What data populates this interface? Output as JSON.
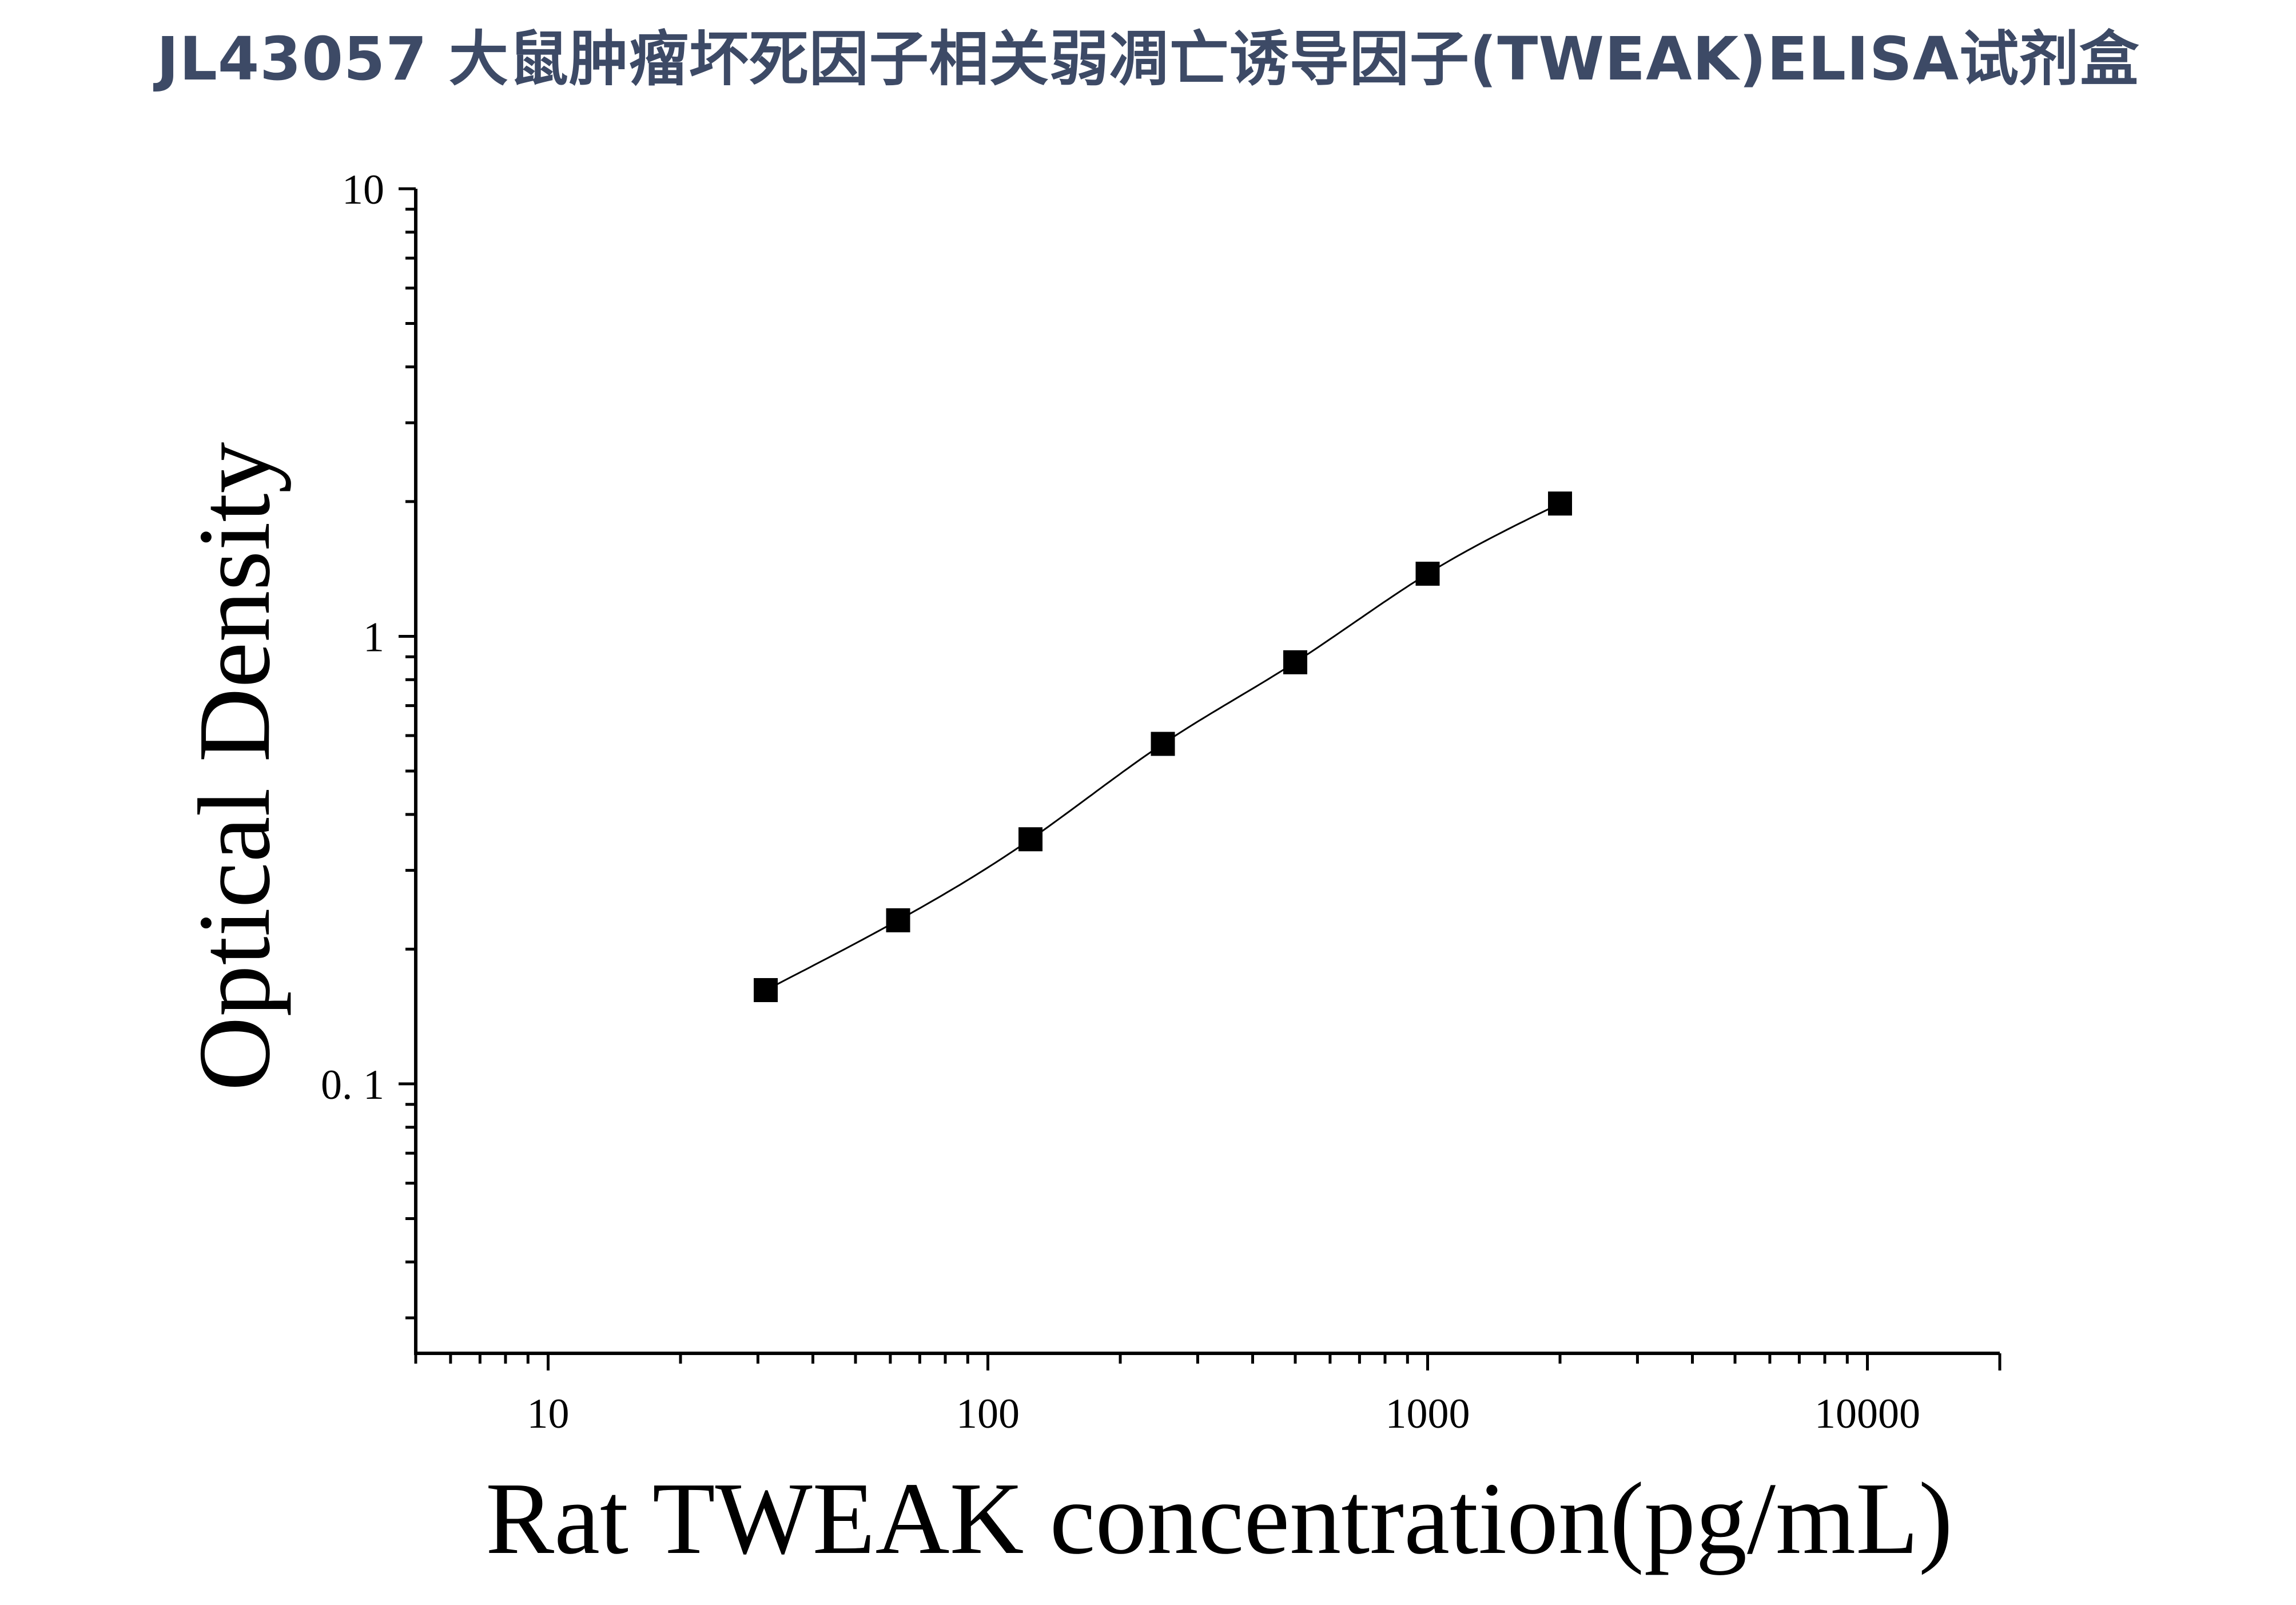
{
  "title": "JL43057 大鼠肿瘤坏死因子相关弱凋亡诱导因子(TWEAK)ELISA试剂盒",
  "chart_data": {
    "type": "scatter",
    "xlabel": "Rat TWEAK concentration(pg/mL)",
    "ylabel": "Optical Density",
    "x_scale": "log",
    "y_scale": "log",
    "xlim": [
      5,
      20000
    ],
    "ylim": [
      0.025,
      10
    ],
    "x_ticks": [
      {
        "value": 10,
        "label": "10"
      },
      {
        "value": 100,
        "label": "100"
      },
      {
        "value": 1000,
        "label": "1000"
      },
      {
        "value": 10000,
        "label": "10000"
      }
    ],
    "y_ticks": [
      {
        "value": 0.1,
        "label": "0. 1"
      },
      {
        "value": 1,
        "label": "1"
      },
      {
        "value": 10,
        "label": "10"
      }
    ],
    "grid": false,
    "marker": "square",
    "fit_curve": true,
    "color": "#000000",
    "series": [
      {
        "x": [
          31.25,
          62.5,
          125,
          250,
          500,
          1000,
          2000
        ],
        "y": [
          0.162,
          0.232,
          0.352,
          0.575,
          0.875,
          1.38,
          1.98
        ]
      }
    ]
  }
}
